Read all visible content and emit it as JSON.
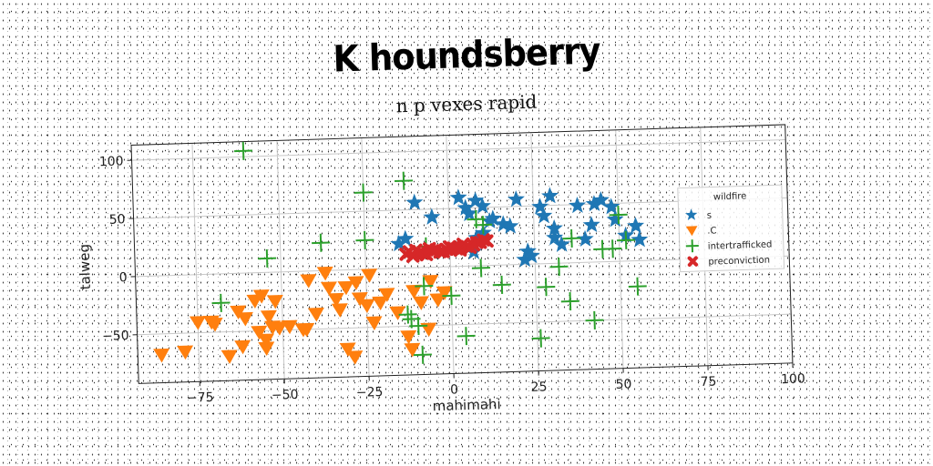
{
  "chart_data": {
    "type": "scatter",
    "title": "K houndsberry",
    "subtitle": "n p vexes rapid",
    "xlabel": "mahimahi",
    "ylabel": "talweg",
    "xlim": [
      -93,
      100
    ],
    "ylim": [
      -92,
      113
    ],
    "xticks": [
      -75,
      -50,
      -25,
      0,
      25,
      50,
      75,
      100
    ],
    "yticks": [
      -50,
      0,
      50,
      100
    ],
    "xtick_labels": [
      "−75",
      "−50",
      "−25",
      "0",
      "25",
      "50",
      "75",
      "100"
    ],
    "ytick_labels": [
      "−50",
      "0",
      "50",
      "100"
    ],
    "grid": true,
    "legend": {
      "title": "wildfire",
      "placement": "right"
    },
    "series": [
      {
        "name": "s",
        "marker": "star",
        "color": "#1f77b4",
        "points": [
          [
            -15,
            21
          ],
          [
            -13,
            25
          ],
          [
            -10,
            56
          ],
          [
            -5,
            43
          ],
          [
            3,
            59
          ],
          [
            5,
            50
          ],
          [
            6,
            45
          ],
          [
            8,
            56
          ],
          [
            10,
            51
          ],
          [
            12,
            38
          ],
          [
            13,
            40
          ],
          [
            16,
            35
          ],
          [
            18,
            33
          ],
          [
            20,
            56
          ],
          [
            22,
            4
          ],
          [
            23,
            11
          ],
          [
            24,
            7
          ],
          [
            27,
            49
          ],
          [
            28,
            41
          ],
          [
            30,
            58
          ],
          [
            31,
            30
          ],
          [
            31,
            22
          ],
          [
            33,
            16
          ],
          [
            38,
            49
          ],
          [
            40,
            20
          ],
          [
            42,
            32
          ],
          [
            43,
            50
          ],
          [
            45,
            53
          ],
          [
            48,
            47
          ],
          [
            49,
            36
          ],
          [
            52,
            22
          ],
          [
            55,
            30
          ],
          [
            56,
            18
          ],
          [
            8,
            24
          ],
          [
            10,
            28
          ],
          [
            7,
            12
          ]
        ]
      },
      {
        "name": ".C",
        "marker": "triangle_down",
        "color": "#ff7f0e",
        "points": [
          [
            -86,
            -68
          ],
          [
            -79,
            -66
          ],
          [
            -75,
            -41
          ],
          [
            -71,
            -41
          ],
          [
            -70,
            -43
          ],
          [
            -66,
            -71
          ],
          [
            -62,
            -63
          ],
          [
            -63,
            -33
          ],
          [
            -61,
            -39
          ],
          [
            -58,
            -24
          ],
          [
            -57,
            -51
          ],
          [
            -55,
            -65
          ],
          [
            -55,
            -58
          ],
          [
            -54,
            -38
          ],
          [
            -53,
            -47
          ],
          [
            -52,
            -25
          ],
          [
            -51,
            -48
          ],
          [
            -48,
            -47
          ],
          [
            -44,
            -50
          ],
          [
            -43,
            -50
          ],
          [
            -40,
            -37
          ],
          [
            -37,
            -2
          ],
          [
            -36,
            -15
          ],
          [
            -34,
            -25
          ],
          [
            -33,
            -34
          ],
          [
            -31,
            -68
          ],
          [
            -31,
            -15
          ],
          [
            -29,
            -75
          ],
          [
            -28,
            -11
          ],
          [
            -27,
            -25
          ],
          [
            -25,
            -31
          ],
          [
            -24,
            -5
          ],
          [
            -23,
            -46
          ],
          [
            -21,
            -29
          ],
          [
            -19,
            -22
          ],
          [
            -16,
            -38
          ],
          [
            -13,
            -59
          ],
          [
            -12,
            -70
          ],
          [
            -11,
            -20
          ],
          [
            -9,
            -30
          ],
          [
            -7,
            -53
          ],
          [
            -6,
            -12
          ],
          [
            -4,
            -28
          ],
          [
            -2,
            -22
          ],
          [
            -42,
            -8
          ],
          [
            -56,
            -20
          ]
        ]
      },
      {
        "name": "intertrafficked",
        "marker": "plus",
        "color": "#2ca02c",
        "points": [
          [
            -60,
            105
          ],
          [
            -54,
            12
          ],
          [
            -68,
            -25
          ],
          [
            -38,
            24
          ],
          [
            -25,
            66
          ],
          [
            -25,
            25
          ],
          [
            -13,
            75
          ],
          [
            -12,
            -44
          ],
          [
            -10,
            -50
          ],
          [
            -9,
            -75
          ],
          [
            -8,
            -16
          ],
          [
            -13,
            -40
          ],
          [
            -7,
            18
          ],
          [
            0,
            -25
          ],
          [
            4,
            -60
          ],
          [
            9,
            -2
          ],
          [
            8,
            40
          ],
          [
            10,
            35
          ],
          [
            15,
            -17
          ],
          [
            26,
            -64
          ],
          [
            28,
            -20
          ],
          [
            32,
            -3
          ],
          [
            35,
            -33
          ],
          [
            36,
            21
          ],
          [
            42,
            -50
          ],
          [
            45,
            11
          ],
          [
            48,
            11
          ],
          [
            50,
            40
          ],
          [
            55,
            -22
          ],
          [
            52,
            18
          ]
        ]
      },
      {
        "name": "preconviction",
        "marker": "x",
        "color": "#d62728",
        "points": [
          [
            -13,
            12
          ],
          [
            -11,
            10
          ],
          [
            -9,
            13
          ],
          [
            -7,
            11
          ],
          [
            -5,
            14
          ],
          [
            -3,
            13
          ],
          [
            -1,
            15
          ],
          [
            1,
            16
          ],
          [
            3,
            14
          ],
          [
            5,
            17
          ],
          [
            7,
            18
          ],
          [
            9,
            20
          ],
          [
            10,
            22
          ],
          [
            -12,
            14
          ],
          [
            -8,
            12
          ],
          [
            -4,
            15
          ],
          [
            0,
            17
          ],
          [
            4,
            19
          ],
          [
            8,
            20
          ],
          [
            6,
            16
          ],
          [
            2,
            15
          ],
          [
            -2,
            13
          ],
          [
            -6,
            16
          ],
          [
            -10,
            15
          ],
          [
            11,
            21
          ]
        ]
      }
    ]
  }
}
